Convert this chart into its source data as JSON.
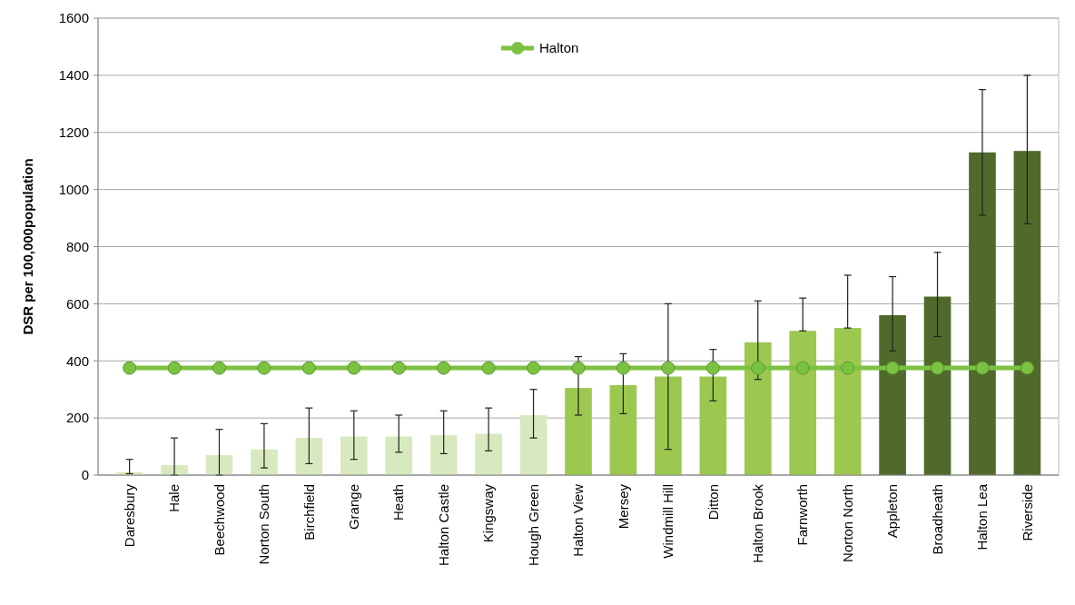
{
  "chart_data": {
    "type": "bar",
    "ylabel": "DSR per 100,000population",
    "categories": [
      "Daresbury",
      "Hale",
      "Beechwood",
      "Norton South",
      "Birchfield",
      "Grange",
      "Heath",
      "Halton Castle",
      "Kingsway",
      "Hough Green",
      "Halton View",
      "Mersey",
      "Windmill Hill",
      "Ditton",
      "Halton Brook",
      "Farnworth",
      "Norton North",
      "Appleton",
      "Broadheath",
      "Halton Lea",
      "Riverside"
    ],
    "series": [
      {
        "values": [
          10,
          35,
          70,
          90,
          130,
          135,
          135,
          140,
          145,
          210,
          305,
          315,
          345,
          345,
          465,
          505,
          515,
          560,
          625,
          1130,
          1135
        ],
        "colors": [
          "#d9e9bf",
          "#d9e9bf",
          "#d9e9bf",
          "#d9e9bf",
          "#d9e9bf",
          "#d9e9bf",
          "#d9e9bf",
          "#d9e9bf",
          "#d9e9bf",
          "#d9e9bf",
          "#9cc850",
          "#9cc850",
          "#9cc850",
          "#9cc850",
          "#9cc850",
          "#9cc850",
          "#9cc850",
          "#4f6a2b",
          "#4f6a2b",
          "#4f6a2b",
          "#4f6a2b"
        ],
        "errors": [
          [
            5,
            55
          ],
          [
            0,
            130
          ],
          [
            0,
            160
          ],
          [
            25,
            180
          ],
          [
            40,
            235
          ],
          [
            55,
            225
          ],
          [
            80,
            210
          ],
          [
            75,
            225
          ],
          [
            85,
            235
          ],
          [
            130,
            300
          ],
          [
            210,
            415
          ],
          [
            215,
            425
          ],
          [
            90,
            600
          ],
          [
            260,
            440
          ],
          [
            335,
            610
          ],
          [
            505,
            620
          ],
          [
            515,
            700
          ],
          [
            435,
            695
          ],
          [
            485,
            780
          ],
          [
            910,
            1350
          ],
          [
            880,
            1400
          ]
        ]
      },
      {
        "type": "line",
        "name": "Halton",
        "color": "#7cc242",
        "values": [
          375,
          375,
          375,
          375,
          375,
          375,
          375,
          375,
          375,
          375,
          375,
          375,
          375,
          375,
          375,
          375,
          375,
          375,
          375,
          375,
          375
        ]
      }
    ],
    "ylim": [
      0,
      1600
    ],
    "yticks": [
      0,
      200,
      400,
      600,
      800,
      1000,
      1200,
      1400,
      1600
    ],
    "grid": "y",
    "legend": "top",
    "marker": "circle"
  }
}
